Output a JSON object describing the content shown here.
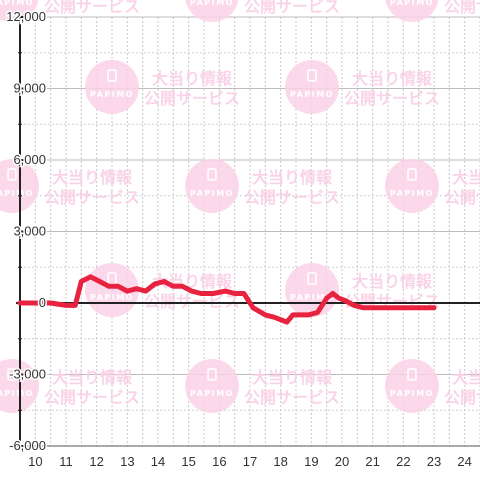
{
  "chart_data": {
    "type": "line",
    "title": "",
    "xlabel": "",
    "ylabel": "",
    "xlim": [
      9.5,
      24.5
    ],
    "ylim": [
      -6000,
      12000
    ],
    "x_ticks": [
      10,
      11,
      12,
      13,
      14,
      15,
      16,
      17,
      18,
      19,
      20,
      21,
      22,
      23,
      24
    ],
    "x_tick_labels": [
      "10",
      "11",
      "12",
      "13",
      "14",
      "15",
      "16",
      "17",
      "18",
      "19",
      "20",
      "21",
      "22",
      "23",
      "24"
    ],
    "y_ticks": [
      -6000,
      -3000,
      0,
      3000,
      6000,
      9000,
      12000
    ],
    "y_tick_labels": [
      "-6,000",
      "-3,000",
      "0",
      "3,000",
      "6,000",
      "9,000",
      "12,000"
    ],
    "grid": true,
    "series": [
      {
        "color": "#e8233f",
        "x": [
          9.5,
          10.5,
          11.0,
          11.3,
          11.5,
          11.8,
          12.1,
          12.4,
          12.7,
          13.0,
          13.3,
          13.6,
          13.9,
          14.2,
          14.5,
          14.8,
          15.1,
          15.4,
          15.8,
          16.2,
          16.5,
          16.8,
          17.1,
          17.5,
          17.8,
          18.2,
          18.4,
          18.6,
          18.9,
          19.2,
          19.5,
          19.7,
          19.9,
          20.1,
          20.4,
          20.7,
          21.0,
          21.5,
          22.0,
          22.5,
          23.0
        ],
        "y": [
          0,
          0,
          -100,
          -100,
          900,
          1100,
          900,
          700,
          700,
          500,
          600,
          500,
          800,
          900,
          700,
          700,
          500,
          400,
          400,
          500,
          400,
          400,
          -200,
          -500,
          -600,
          -800,
          -500,
          -500,
          -500,
          -400,
          200,
          400,
          200,
          100,
          -100,
          -200,
          -200,
          -200,
          -200,
          -200,
          -200
        ]
      }
    ],
    "watermark": {
      "logo_text": "PAPIMO",
      "line1": "大当り情報",
      "line2": "公開サービス"
    }
  }
}
